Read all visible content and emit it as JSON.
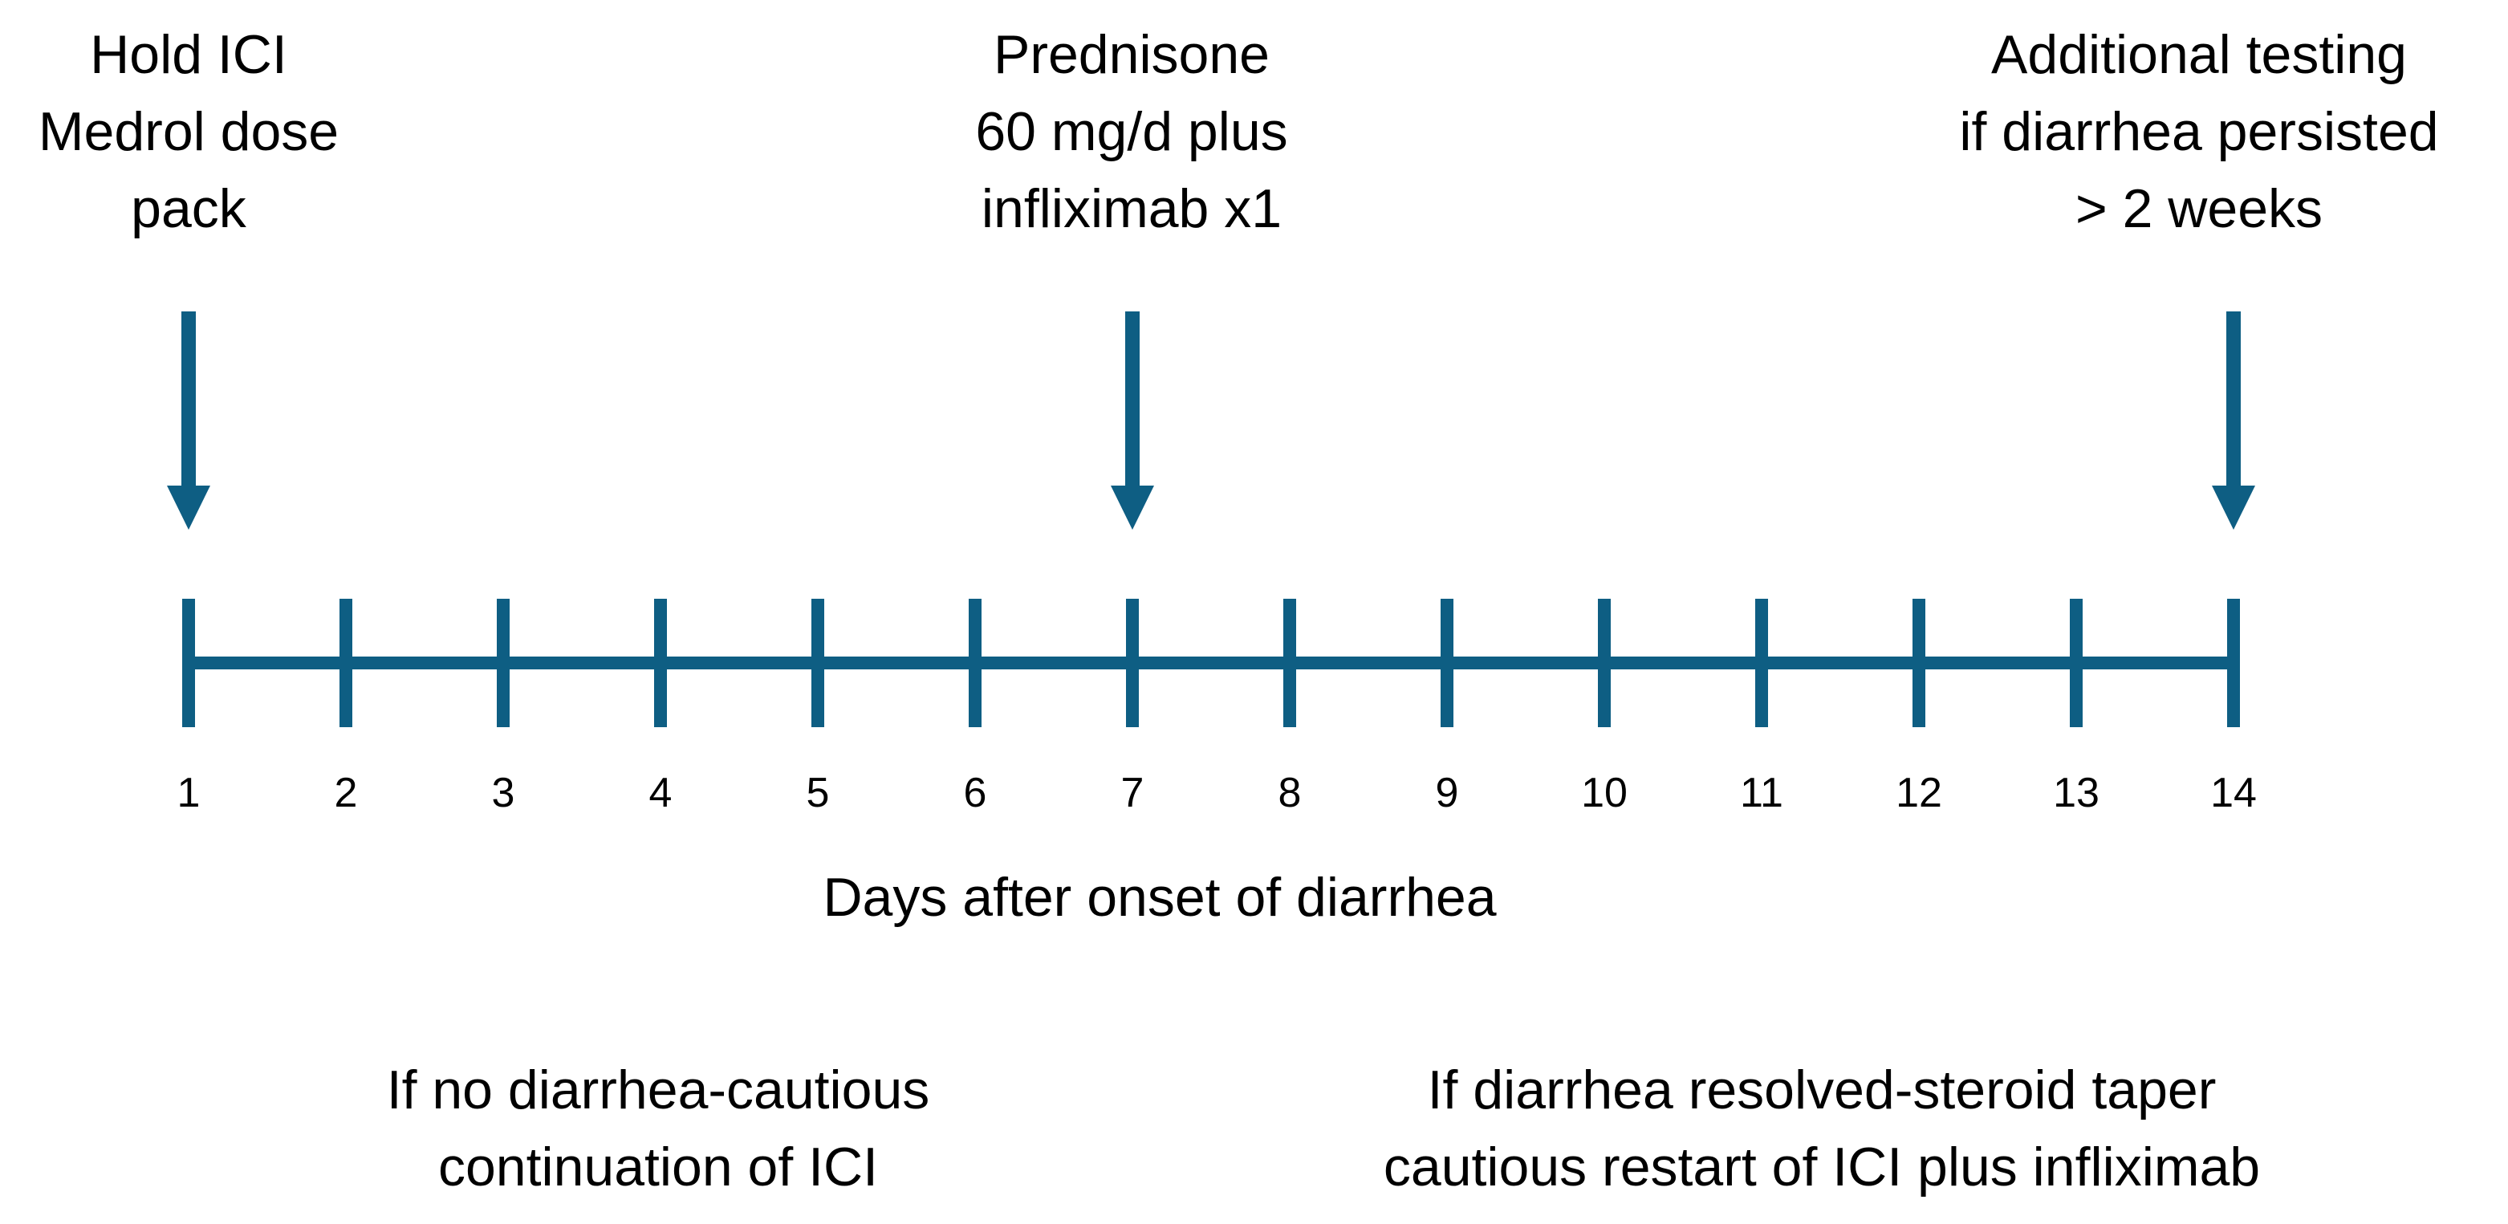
{
  "colors": {
    "primary": "#0e5e83",
    "text": "#000000",
    "background": "#ffffff"
  },
  "events": [
    {
      "day": 1,
      "lines": [
        "Hold ICI",
        "Medrol dose",
        "pack"
      ]
    },
    {
      "day": 7,
      "lines": [
        "Prednisone",
        "60 mg/d plus",
        "infliximab x1"
      ]
    },
    {
      "day": 14,
      "lines": [
        "Additional testing",
        "if diarrhea persisted",
        "> 2 weeks"
      ]
    }
  ],
  "timeline": {
    "days": [
      "1",
      "2",
      "3",
      "4",
      "5",
      "6",
      "7",
      "8",
      "9",
      "10",
      "11",
      "12",
      "13",
      "14"
    ],
    "axis_title": "Days after onset of diarrhea"
  },
  "outcomes": {
    "left": [
      "If no diarrhea-cautious",
      "continuation of ICI"
    ],
    "right": [
      "If diarrhea resolved-steroid taper",
      "cautious restart of ICI plus infliximab"
    ]
  }
}
